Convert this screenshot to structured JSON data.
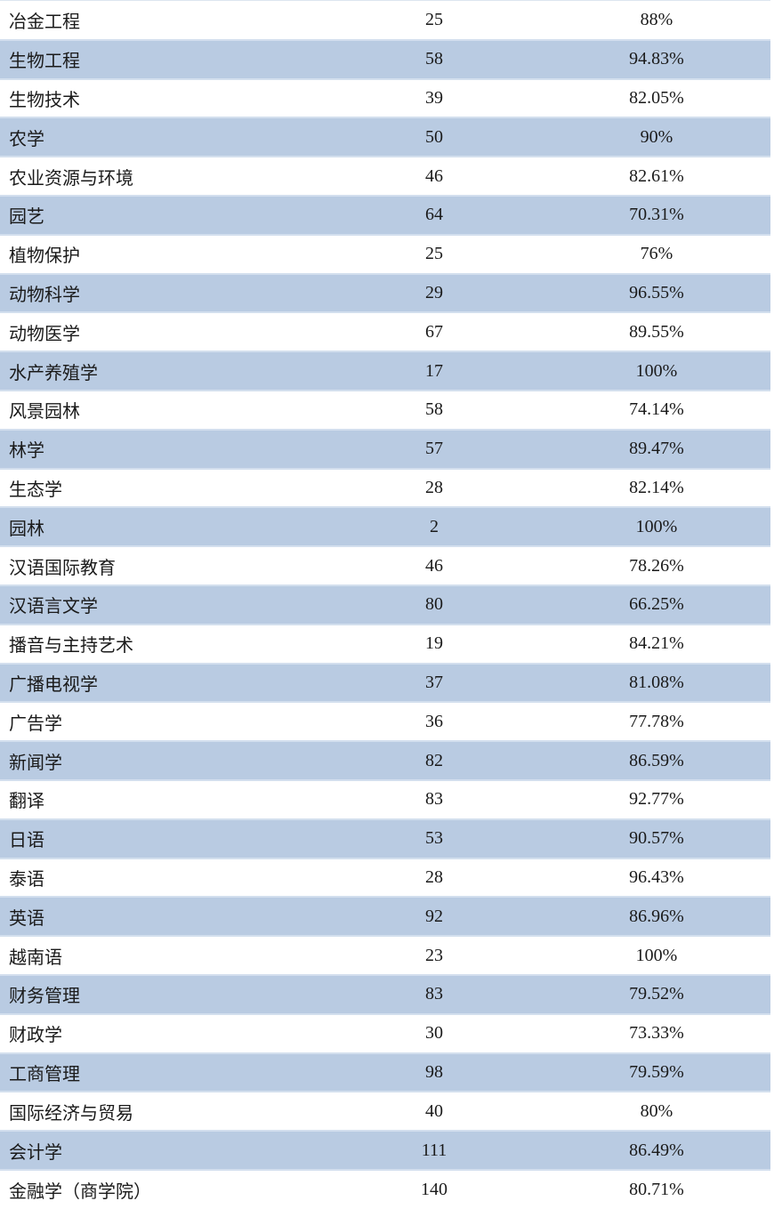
{
  "rows": [
    {
      "major": "冶金工程",
      "count": "25",
      "rate": "88%"
    },
    {
      "major": "生物工程",
      "count": "58",
      "rate": "94.83%"
    },
    {
      "major": "生物技术",
      "count": "39",
      "rate": "82.05%"
    },
    {
      "major": "农学",
      "count": "50",
      "rate": "90%"
    },
    {
      "major": "农业资源与环境",
      "count": "46",
      "rate": "82.61%"
    },
    {
      "major": "园艺",
      "count": "64",
      "rate": "70.31%"
    },
    {
      "major": "植物保护",
      "count": "25",
      "rate": "76%"
    },
    {
      "major": "动物科学",
      "count": "29",
      "rate": "96.55%"
    },
    {
      "major": "动物医学",
      "count": "67",
      "rate": "89.55%"
    },
    {
      "major": "水产养殖学",
      "count": "17",
      "rate": "100%"
    },
    {
      "major": "风景园林",
      "count": "58",
      "rate": "74.14%"
    },
    {
      "major": "林学",
      "count": "57",
      "rate": "89.47%"
    },
    {
      "major": "生态学",
      "count": "28",
      "rate": "82.14%"
    },
    {
      "major": "园林",
      "count": "2",
      "rate": "100%"
    },
    {
      "major": "汉语国际教育",
      "count": "46",
      "rate": "78.26%"
    },
    {
      "major": "汉语言文学",
      "count": "80",
      "rate": "66.25%"
    },
    {
      "major": "播音与主持艺术",
      "count": "19",
      "rate": "84.21%"
    },
    {
      "major": "广播电视学",
      "count": "37",
      "rate": "81.08%"
    },
    {
      "major": "广告学",
      "count": "36",
      "rate": "77.78%"
    },
    {
      "major": "新闻学",
      "count": "82",
      "rate": "86.59%"
    },
    {
      "major": "翻译",
      "count": "83",
      "rate": "92.77%"
    },
    {
      "major": "日语",
      "count": "53",
      "rate": "90.57%"
    },
    {
      "major": "泰语",
      "count": "28",
      "rate": "96.43%"
    },
    {
      "major": "英语",
      "count": "92",
      "rate": "86.96%"
    },
    {
      "major": "越南语",
      "count": "23",
      "rate": "100%"
    },
    {
      "major": "财务管理",
      "count": "83",
      "rate": "79.52%"
    },
    {
      "major": "财政学",
      "count": "30",
      "rate": "73.33%"
    },
    {
      "major": "工商管理",
      "count": "98",
      "rate": "79.59%"
    },
    {
      "major": "国际经济与贸易",
      "count": "40",
      "rate": "80%"
    },
    {
      "major": "会计学",
      "count": "111",
      "rate": "86.49%"
    },
    {
      "major": "金融学（商学院）",
      "count": "140",
      "rate": "80.71%"
    }
  ],
  "colors": {
    "band": "#b9cbe2",
    "plain": "#ffffff"
  }
}
